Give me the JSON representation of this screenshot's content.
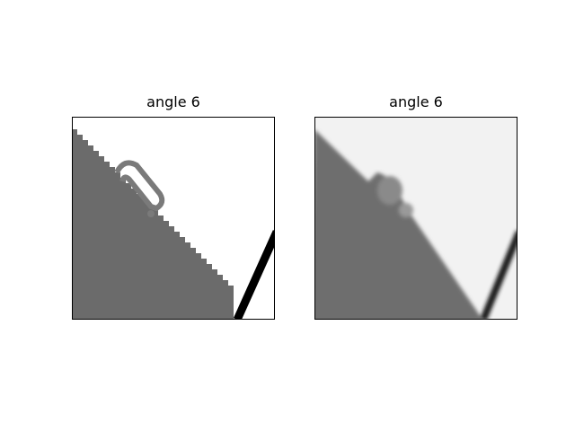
{
  "panels": [
    {
      "title": "angle 6",
      "variant": "original"
    },
    {
      "title": "angle 6",
      "variant": "reconstruction"
    }
  ],
  "colors": {
    "dark_region": "#6b6b6b",
    "light_region_original": "#ffffff",
    "light_region_reconstruction": "#f2f2f2",
    "edge_line": "#000000",
    "frame": "#000000"
  }
}
